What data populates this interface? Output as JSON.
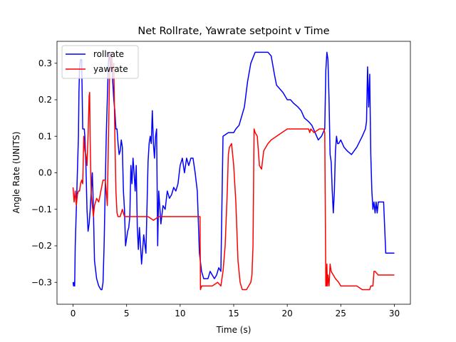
{
  "chart_data": {
    "type": "line",
    "title": "Net Rollrate, Yawrate setpoint v Time",
    "xlabel": "Time (s)",
    "ylabel": "Angle Rate (UNITS)",
    "xlim": [
      -1.5,
      31.5
    ],
    "ylim": [
      -0.36,
      0.36
    ],
    "xticks": [
      0,
      5,
      10,
      15,
      20,
      25,
      30
    ],
    "xtick_labels": [
      "0",
      "5",
      "10",
      "15",
      "20",
      "25",
      "30"
    ],
    "yticks": [
      -0.3,
      -0.2,
      -0.1,
      0.0,
      0.1,
      0.2,
      0.3
    ],
    "ytick_labels": [
      "−0.3",
      "−0.2",
      "−0.1",
      "0.0",
      "0.1",
      "0.2",
      "0.3"
    ],
    "grid": false,
    "legend_position": "top-left",
    "series": [
      {
        "name": "rollrate",
        "color": "#0000ff",
        "x": [
          0,
          0.05,
          0.1,
          0.15,
          0.2,
          0.3,
          0.4,
          0.5,
          0.55,
          0.6,
          0.65,
          0.7,
          0.75,
          0.8,
          0.9,
          1.0,
          1.05,
          1.1,
          1.2,
          1.3,
          1.4,
          1.5,
          1.6,
          1.7,
          1.8,
          1.9,
          2.0,
          2.2,
          2.4,
          2.6,
          2.7,
          2.8,
          2.9,
          3.0,
          3.1,
          3.2,
          3.3,
          3.4,
          3.5,
          3.6,
          3.7,
          3.8,
          3.9,
          4.0,
          4.1,
          4.2,
          4.3,
          4.4,
          4.5,
          4.6,
          4.7,
          4.8,
          4.9,
          5.0,
          5.1,
          5.2,
          5.3,
          5.4,
          5.5,
          5.6,
          5.7,
          5.8,
          5.9,
          6.0,
          6.1,
          6.2,
          6.4,
          6.6,
          6.8,
          7.0,
          7.1,
          7.2,
          7.3,
          7.4,
          7.5,
          7.6,
          7.7,
          7.8,
          7.9,
          8.0,
          8.2,
          8.4,
          8.6,
          8.8,
          9.0,
          9.2,
          9.4,
          9.6,
          9.8,
          10.0,
          10.2,
          10.4,
          10.6,
          10.8,
          11.0,
          11.2,
          11.4,
          11.6,
          11.8,
          12.0,
          12.2,
          12.4,
          12.6,
          12.8,
          13.0,
          13.2,
          13.4,
          13.6,
          13.8,
          14.0,
          14.5,
          15.0,
          15.2,
          15.5,
          16.0,
          16.3,
          16.6,
          17.0,
          17.5,
          18.0,
          18.2,
          18.5,
          18.8,
          19.0,
          19.3,
          19.6,
          20.0,
          20.3,
          20.6,
          21.0,
          21.3,
          21.6,
          22.0,
          22.3,
          22.6,
          22.9,
          23.2,
          23.5,
          23.6,
          23.7,
          23.8,
          23.9,
          24.0,
          24.1,
          24.2,
          24.3,
          24.4,
          24.5,
          24.6,
          24.7,
          24.8,
          25.0,
          25.3,
          25.6,
          26.0,
          26.5,
          27.0,
          27.3,
          27.4,
          27.5,
          27.6,
          27.7,
          27.8,
          27.9,
          28.0,
          28.1,
          28.2,
          28.3,
          28.4,
          28.5,
          28.6,
          28.8,
          29.0,
          29.2,
          29.5,
          30.0
        ],
        "y": [
          -0.3,
          -0.31,
          -0.3,
          -0.31,
          -0.2,
          -0.1,
          0.0,
          0.1,
          0.22,
          0.28,
          0.3,
          0.31,
          0.31,
          0.31,
          0.12,
          0.12,
          0.12,
          0.1,
          0.02,
          -0.1,
          -0.16,
          -0.14,
          -0.1,
          -0.05,
          0.0,
          -0.1,
          -0.24,
          -0.29,
          -0.31,
          -0.32,
          -0.32,
          -0.3,
          -0.2,
          -0.05,
          0.1,
          0.2,
          0.3,
          0.33,
          0.28,
          0.32,
          0.25,
          0.2,
          0.17,
          0.12,
          0.12,
          0.08,
          0.05,
          0.06,
          0.09,
          0.07,
          -0.05,
          -0.1,
          -0.2,
          -0.18,
          -0.16,
          -0.15,
          -0.12,
          0.02,
          -0.03,
          0.04,
          0.0,
          -0.05,
          0.02,
          -0.15,
          -0.21,
          -0.15,
          -0.25,
          -0.17,
          -0.22,
          0.03,
          0.08,
          0.1,
          0.08,
          0.17,
          0.08,
          0.04,
          0.1,
          0.12,
          -0.2,
          -0.05,
          -0.14,
          -0.09,
          -0.1,
          -0.05,
          -0.07,
          -0.06,
          -0.04,
          -0.05,
          -0.03,
          0.02,
          0.04,
          0.0,
          0.04,
          0.02,
          0.04,
          0.04,
          0.0,
          -0.05,
          -0.22,
          -0.27,
          -0.29,
          -0.29,
          -0.29,
          -0.27,
          -0.28,
          -0.29,
          -0.28,
          -0.26,
          -0.27,
          0.1,
          0.11,
          0.11,
          0.12,
          0.13,
          0.18,
          0.25,
          0.3,
          0.33,
          0.33,
          0.33,
          0.33,
          0.32,
          0.27,
          0.24,
          0.23,
          0.22,
          0.2,
          0.2,
          0.19,
          0.18,
          0.17,
          0.15,
          0.14,
          0.13,
          0.11,
          0.09,
          0.1,
          0.12,
          0.28,
          0.33,
          0.31,
          0.2,
          0.05,
          0.03,
          -0.05,
          -0.11,
          -0.05,
          0.06,
          0.1,
          0.08,
          0.08,
          0.09,
          0.07,
          0.06,
          0.05,
          0.07,
          0.1,
          0.12,
          0.14,
          0.29,
          0.18,
          0.27,
          0.05,
          -0.05,
          -0.1,
          -0.08,
          -0.11,
          -0.08,
          -0.11,
          -0.08,
          -0.08,
          -0.08,
          -0.08,
          -0.22,
          -0.22,
          -0.22
        ],
        "y_note_removed": true
      },
      {
        "name": "yawrate",
        "color": "#ff0000",
        "x": [
          0,
          0.1,
          0.2,
          0.3,
          0.4,
          0.5,
          0.6,
          0.7,
          0.8,
          0.9,
          1.0,
          1.1,
          1.2,
          1.3,
          1.4,
          1.5,
          1.55,
          1.6,
          1.7,
          1.8,
          1.9,
          2.0,
          2.2,
          2.4,
          2.6,
          2.8,
          3.0,
          3.1,
          3.2,
          3.3,
          3.4,
          3.5,
          3.6,
          3.7,
          3.8,
          3.9,
          4.0,
          4.1,
          4.2,
          4.4,
          4.6,
          4.8,
          5.0,
          5.5,
          6.0,
          6.5,
          7.0,
          7.5,
          8.0,
          9.0,
          10.0,
          11.0,
          11.8,
          11.85,
          11.9,
          12.0,
          12.5,
          13.0,
          13.5,
          13.8,
          14.0,
          14.2,
          14.4,
          14.5,
          14.6,
          14.8,
          15.0,
          15.2,
          15.4,
          15.6,
          15.8,
          16.0,
          16.2,
          16.4,
          16.6,
          16.7,
          16.8,
          16.9,
          17.0,
          17.2,
          17.4,
          17.6,
          17.8,
          18.0,
          18.2,
          18.5,
          19.0,
          20.0,
          21.0,
          22.0,
          22.1,
          22.2,
          22.5,
          23.0,
          23.4,
          23.5,
          23.6,
          23.65,
          23.7,
          23.75,
          23.8,
          23.9,
          24.0,
          24.1,
          24.3,
          24.5,
          24.8,
          25.0,
          25.5,
          26.0,
          26.5,
          27.0,
          27.5,
          27.6,
          27.7,
          27.8,
          27.9,
          28.0,
          28.1,
          28.2,
          28.5,
          29.0,
          30.0
        ],
        "y": [
          -0.04,
          -0.08,
          -0.05,
          -0.09,
          -0.06,
          -0.05,
          -0.05,
          -0.03,
          -0.02,
          -0.03,
          0.1,
          0.06,
          0.05,
          0.02,
          0.1,
          0.21,
          0.22,
          0.08,
          -0.06,
          -0.09,
          -0.12,
          -0.09,
          -0.07,
          -0.08,
          -0.05,
          -0.02,
          -0.02,
          -0.05,
          -0.09,
          0.08,
          0.25,
          0.33,
          0.3,
          0.28,
          0.3,
          0.1,
          -0.05,
          -0.11,
          -0.12,
          -0.12,
          -0.1,
          -0.12,
          -0.12,
          -0.12,
          -0.12,
          -0.12,
          -0.12,
          -0.13,
          -0.12,
          -0.12,
          -0.12,
          -0.12,
          -0.12,
          -0.12,
          -0.32,
          -0.31,
          -0.31,
          -0.31,
          -0.3,
          -0.31,
          -0.27,
          -0.2,
          -0.05,
          0.05,
          0.07,
          0.08,
          0.02,
          -0.08,
          -0.24,
          -0.3,
          -0.32,
          -0.32,
          -0.32,
          -0.31,
          -0.3,
          -0.28,
          -0.2,
          0.12,
          0.11,
          0.1,
          0.02,
          0.01,
          0.06,
          0.07,
          0.08,
          0.09,
          0.1,
          0.12,
          0.12,
          0.12,
          0.11,
          0.12,
          0.11,
          0.12,
          0.12,
          0.11,
          -0.31,
          -0.31,
          -0.25,
          -0.31,
          -0.28,
          -0.31,
          -0.25,
          -0.27,
          -0.28,
          -0.29,
          -0.3,
          -0.31,
          -0.31,
          -0.31,
          -0.31,
          -0.32,
          -0.32,
          -0.32,
          -0.32,
          -0.31,
          -0.31,
          -0.31,
          -0.27,
          -0.27,
          -0.28,
          -0.28,
          -0.28
        ]
      }
    ]
  }
}
